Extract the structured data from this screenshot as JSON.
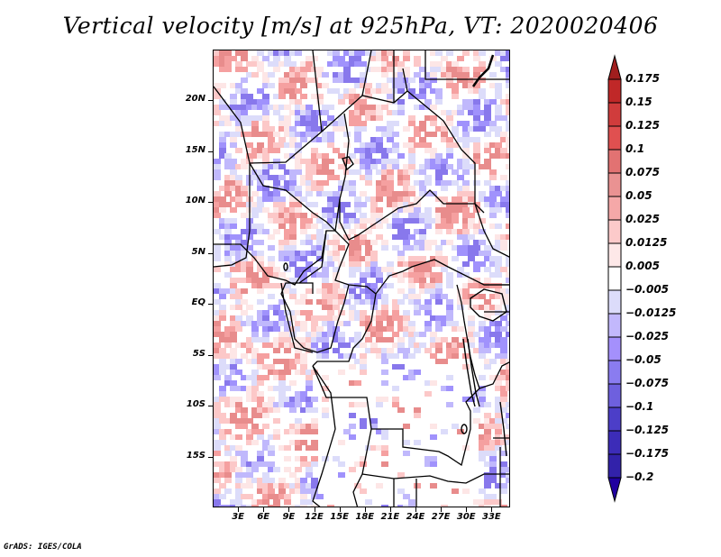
{
  "title": "Vertical velocity [m/s] at 925hPa, VT: 2020020406",
  "credit": "GrADS: IGES/COLA",
  "map": {
    "lon_range": [
      0,
      35.2
    ],
    "lat_range": [
      -20,
      25
    ],
    "variable": "vertical velocity",
    "units": "m/s",
    "level": "925hPa",
    "valid_time": "2020020406",
    "y_ticks": [
      {
        "label": "20N",
        "lat": 20
      },
      {
        "label": "15N",
        "lat": 15
      },
      {
        "label": "10N",
        "lat": 10
      },
      {
        "label": "5N",
        "lat": 5
      },
      {
        "label": "EQ",
        "lat": 0
      },
      {
        "label": "5S",
        "lat": -5
      },
      {
        "label": "10S",
        "lat": -10
      },
      {
        "label": "15S",
        "lat": -15
      }
    ],
    "x_ticks": [
      {
        "label": "3E",
        "lon": 3
      },
      {
        "label": "6E",
        "lon": 6
      },
      {
        "label": "9E",
        "lon": 9
      },
      {
        "label": "12E",
        "lon": 12
      },
      {
        "label": "15E",
        "lon": 15
      },
      {
        "label": "18E",
        "lon": 18
      },
      {
        "label": "21E",
        "lon": 21
      },
      {
        "label": "24E",
        "lon": 24
      },
      {
        "label": "27E",
        "lon": 27
      },
      {
        "label": "30E",
        "lon": 30
      },
      {
        "label": "33E",
        "lon": 33
      }
    ]
  },
  "colorbar": {
    "levels": [
      {
        "label": "0.175",
        "color": "#b41e1e"
      },
      {
        "label": "0.15",
        "color": "#c83232"
      },
      {
        "label": "0.125",
        "color": "#dc4646"
      },
      {
        "label": "0.1",
        "color": "#e66e6e"
      },
      {
        "label": "0.075",
        "color": "#e88c8c"
      },
      {
        "label": "0.05",
        "color": "#f5a0a0"
      },
      {
        "label": "0.025",
        "color": "#fcc8c8"
      },
      {
        "label": "0.0125",
        "color": "#fde6e6"
      },
      {
        "label": "0.005",
        "color": "#ffffff"
      },
      {
        "label": "-0.005",
        "color": "#dcdcfa"
      },
      {
        "label": "-0.0125",
        "color": "#c0b8fc"
      },
      {
        "label": "-0.025",
        "color": "#a092fc"
      },
      {
        "label": "-0.05",
        "color": "#8878ec"
      },
      {
        "label": "-0.075",
        "color": "#6e5ede"
      },
      {
        "label": "-0.1",
        "color": "#4a3cc8"
      },
      {
        "label": "-0.125",
        "color": "#3a2ab8"
      },
      {
        "label": "-0.175",
        "color": "#3020a8"
      },
      {
        "label": "-0.2",
        "color": "#2810a0"
      }
    ],
    "top_arrow_color": "#a01e1e",
    "bottom_arrow_color": "#2000a0"
  }
}
